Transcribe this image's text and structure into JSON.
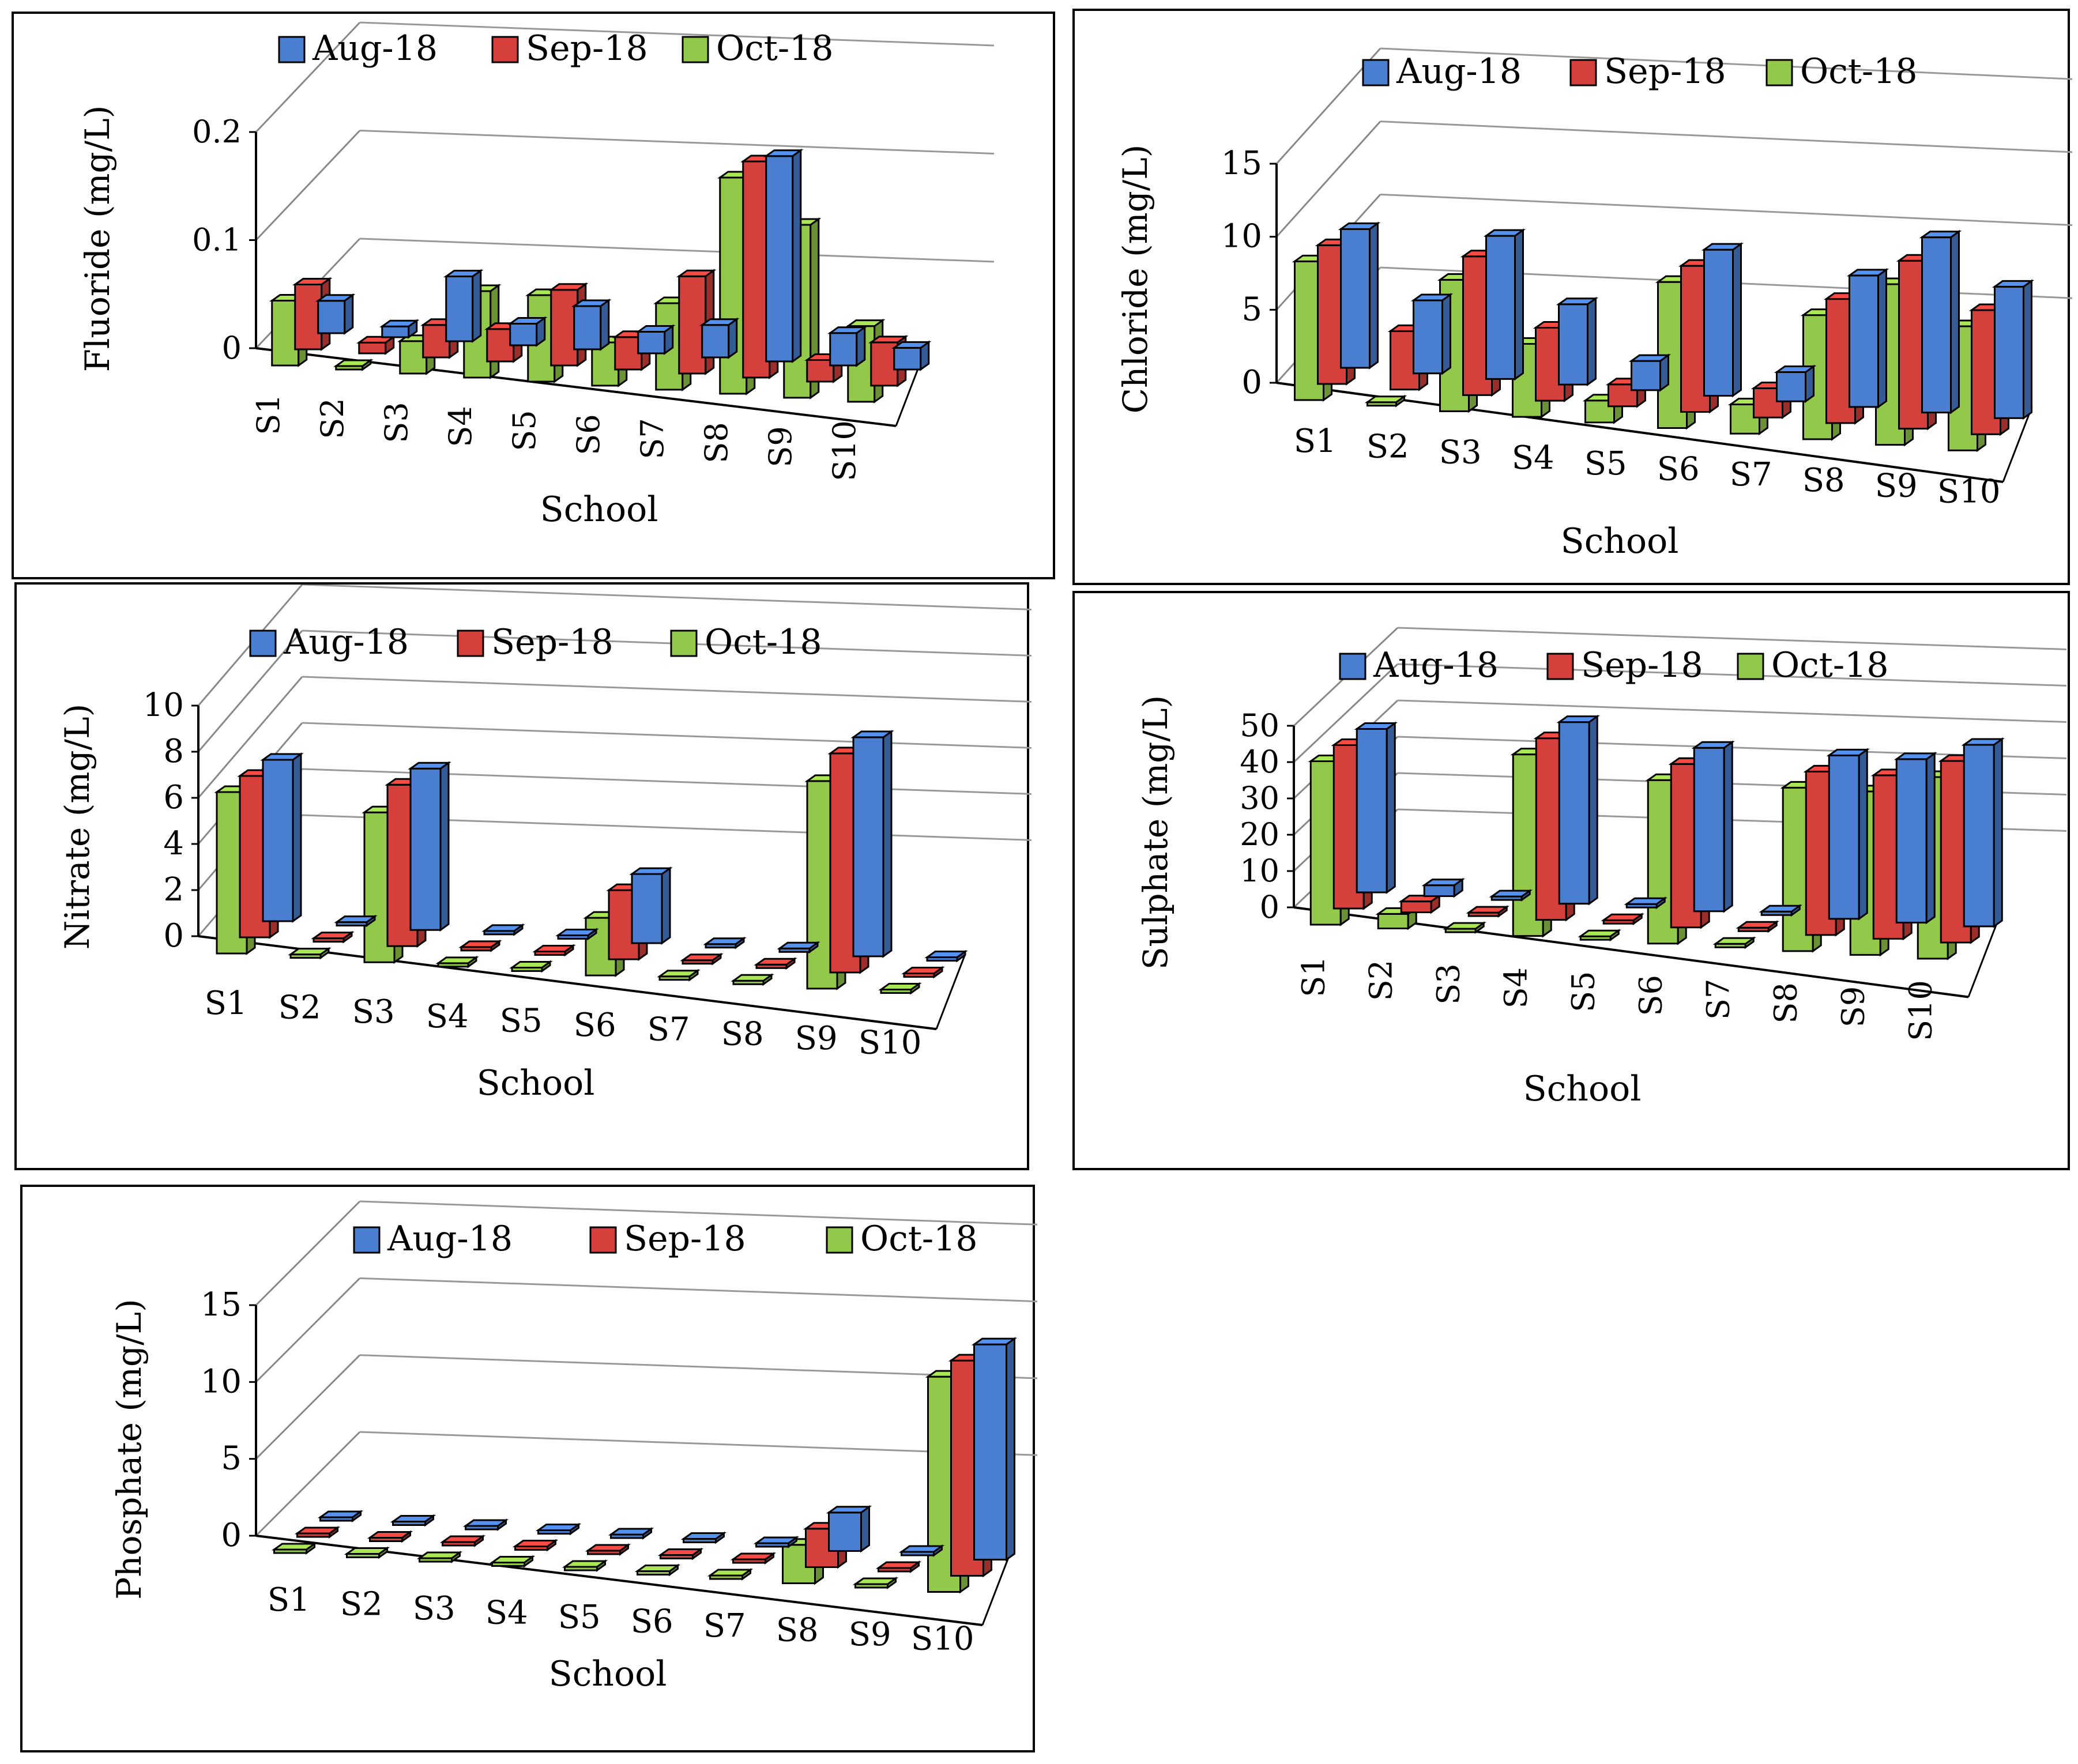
{
  "legend_labels": [
    "Aug-18",
    "Sep-18",
    "Oct-18"
  ],
  "colors": {
    "Aug-18": "#4a7ed0",
    "Sep-18": "#d6403c",
    "Oct-18": "#93c94a"
  },
  "chart_data": [
    {
      "type": "bar",
      "title": "",
      "xlabel": "School",
      "ylabel": "Fluoride (mg/L)",
      "ylim": [
        0,
        0.2
      ],
      "yticks": [
        "0",
        "0.1",
        "0.2"
      ],
      "categories": [
        "S1",
        "S2",
        "S3",
        "S4",
        "S5",
        "S6",
        "S7",
        "S8",
        "S9",
        "S10"
      ],
      "series": [
        {
          "name": "Aug-18",
          "values": [
            0.03,
            0.01,
            0.06,
            0.02,
            0.04,
            0.02,
            0.03,
            0.19,
            0.03,
            0.02
          ]
        },
        {
          "name": "Sep-18",
          "values": [
            0.06,
            0.01,
            0.03,
            0.03,
            0.07,
            0.03,
            0.09,
            0.2,
            0.02,
            0.04
          ]
        },
        {
          "name": "Oct-18",
          "values": [
            0.06,
            0.0,
            0.03,
            0.08,
            0.08,
            0.04,
            0.08,
            0.2,
            0.16,
            0.07
          ]
        }
      ]
    },
    {
      "type": "bar",
      "title": "",
      "xlabel": "School",
      "ylabel": "Chloride (mg/L)",
      "ylim": [
        0,
        15
      ],
      "yticks": [
        "0",
        "5",
        "10",
        "15"
      ],
      "categories": [
        "S1",
        "S2",
        "S3",
        "S4",
        "S5",
        "S6",
        "S7",
        "S8",
        "S9",
        "S10"
      ],
      "series": [
        {
          "name": "Aug-18",
          "values": [
            9.5,
            5.0,
            9.8,
            5.5,
            2.0,
            10.0,
            2.0,
            9.0,
            12.0,
            9.0
          ]
        },
        {
          "name": "Sep-18",
          "values": [
            9.5,
            4.0,
            9.5,
            5.0,
            1.5,
            10.0,
            2.0,
            8.5,
            11.5,
            8.5
          ]
        },
        {
          "name": "Oct-18",
          "values": [
            9.5,
            0.0,
            9.0,
            5.0,
            1.5,
            10.0,
            2.0,
            8.5,
            11.0,
            8.5
          ]
        }
      ]
    },
    {
      "type": "bar",
      "title": "",
      "xlabel": "School",
      "ylabel": "Nitrate (mg/L)",
      "ylim": [
        0,
        10
      ],
      "yticks": [
        "0",
        "2",
        "4",
        "6",
        "8",
        "10"
      ],
      "categories": [
        "S1",
        "S2",
        "S3",
        "S4",
        "S5",
        "S6",
        "S7",
        "S8",
        "S9",
        "S10"
      ],
      "series": [
        {
          "name": "Aug-18",
          "values": [
            7.0,
            0.0,
            7.0,
            0.0,
            0.0,
            3.0,
            0.0,
            0.0,
            9.5,
            0.0
          ]
        },
        {
          "name": "Sep-18",
          "values": [
            7.0,
            0.0,
            7.0,
            0.0,
            0.0,
            3.0,
            0.0,
            0.0,
            9.5,
            0.0
          ]
        },
        {
          "name": "Oct-18",
          "values": [
            7.0,
            0.0,
            6.5,
            0.0,
            0.0,
            2.5,
            0.0,
            0.0,
            9.0,
            0.0
          ]
        }
      ]
    },
    {
      "type": "bar",
      "title": "",
      "xlabel": "School",
      "ylabel": "Sulphate (mg/L)",
      "ylim": [
        0,
        50
      ],
      "yticks": [
        "0",
        "10",
        "20",
        "30",
        "40",
        "50"
      ],
      "categories": [
        "S1",
        "S2",
        "S3",
        "S4",
        "S5",
        "S6",
        "S7",
        "S8",
        "S9",
        "S10"
      ],
      "series": [
        {
          "name": "Aug-18",
          "values": [
            45,
            3,
            0,
            50,
            0,
            45,
            0,
            45,
            45,
            50
          ]
        },
        {
          "name": "Sep-18",
          "values": [
            45,
            3,
            0,
            50,
            0,
            45,
            0,
            45,
            45,
            50
          ]
        },
        {
          "name": "Oct-18",
          "values": [
            45,
            4,
            0,
            50,
            0,
            45,
            0,
            45,
            45,
            50
          ]
        }
      ]
    },
    {
      "type": "bar",
      "title": "",
      "xlabel": "School",
      "ylabel": "Phosphate (mg/L)",
      "ylim": [
        0,
        15
      ],
      "yticks": [
        "0",
        "5",
        "10",
        "15"
      ],
      "categories": [
        "S1",
        "S2",
        "S3",
        "S4",
        "S5",
        "S6",
        "S7",
        "S8",
        "S9",
        "S10"
      ],
      "series": [
        {
          "name": "Aug-18",
          "values": [
            0,
            0,
            0,
            0,
            0,
            0,
            0,
            2.5,
            0,
            14
          ]
        },
        {
          "name": "Sep-18",
          "values": [
            0,
            0,
            0,
            0,
            0,
            0,
            0,
            2.5,
            0,
            14
          ]
        },
        {
          "name": "Oct-18",
          "values": [
            0,
            0,
            0,
            0,
            0,
            0,
            0,
            2.5,
            0,
            14
          ]
        }
      ]
    }
  ]
}
